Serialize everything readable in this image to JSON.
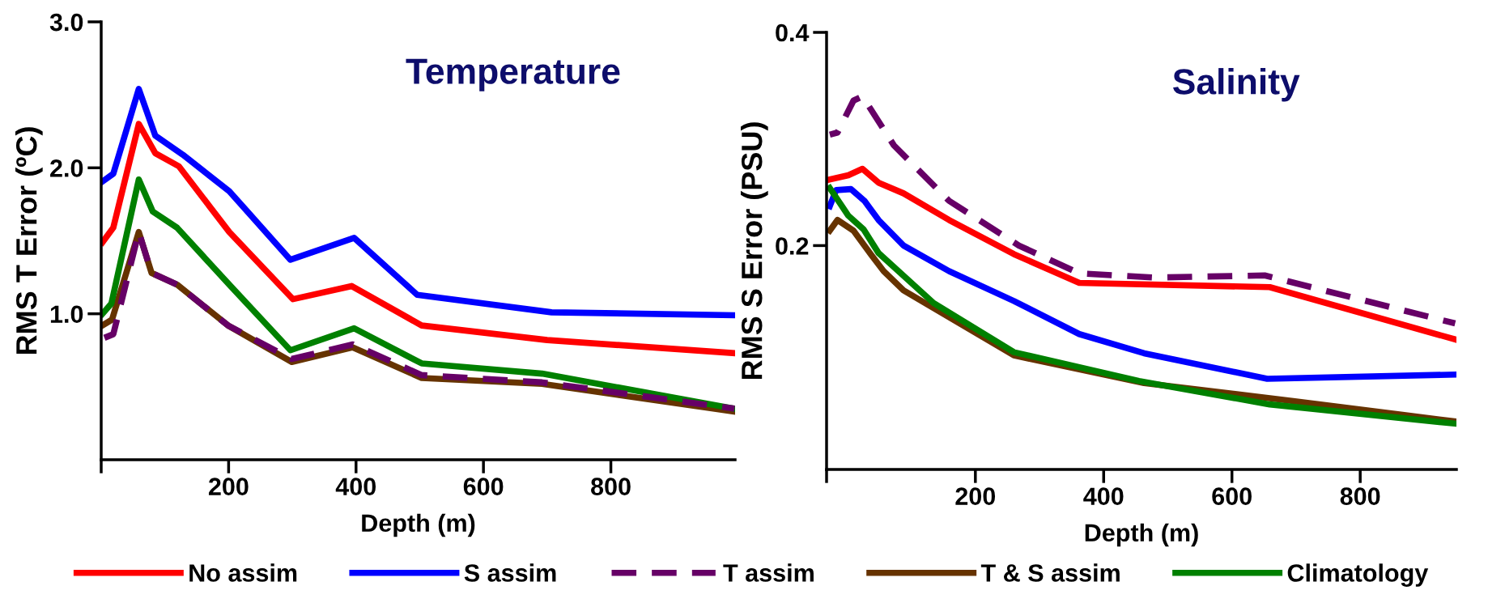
{
  "chart_data": [
    {
      "type": "line",
      "title": "Temperature",
      "xlabel": "Depth (m)",
      "ylabel": "RMS T Error (ºC)",
      "xlim": [
        0,
        995
      ],
      "xticks": [
        {
          "value": 0,
          "label": null
        },
        200,
        400,
        600,
        800
      ],
      "ylim": [
        0,
        3.0
      ],
      "yticks": [
        {
          "value": 1.0,
          "label": "1.0"
        },
        {
          "value": 2.0,
          "label": "2.0"
        },
        {
          "value": 3.0,
          "label": "3.0"
        }
      ],
      "grid": false,
      "legend": "bottom",
      "marker": "none",
      "series": [
        {
          "name": "No assim",
          "color": "#ff0000",
          "x": [
            2,
            19,
            59,
            85,
            122,
            201,
            301,
            393,
            503,
            700,
            994
          ],
          "values": [
            1.49,
            1.59,
            2.3,
            2.1,
            2.01,
            1.56,
            1.1,
            1.19,
            0.92,
            0.82,
            0.73
          ]
        },
        {
          "name": "S assim",
          "color": "#0000ff",
          "x": [
            0,
            19,
            59,
            85,
            128,
            201,
            297,
            397,
            496,
            707,
            994
          ],
          "values": [
            1.9,
            1.96,
            2.54,
            2.22,
            2.09,
            1.84,
            1.37,
            1.52,
            1.13,
            1.01,
            0.99
          ]
        },
        {
          "name": "T assim",
          "color": "#660066",
          "line_style": "dashed",
          "x": [
            2,
            19,
            59,
            79,
            119,
            199,
            299,
            395,
            503,
            692,
            994
          ],
          "values": [
            0.83,
            0.86,
            1.56,
            1.28,
            1.2,
            0.92,
            0.69,
            0.79,
            0.58,
            0.53,
            0.35
          ]
        },
        {
          "name": "T & S assim",
          "color": "#663300",
          "x": [
            2,
            17,
            59,
            79,
            119,
            199,
            299,
            395,
            503,
            692,
            994
          ],
          "values": [
            0.92,
            0.96,
            1.56,
            1.28,
            1.2,
            0.92,
            0.67,
            0.77,
            0.56,
            0.52,
            0.33
          ]
        },
        {
          "name": "Climatology",
          "color": "#008000",
          "x": [
            2,
            16,
            59,
            81,
            119,
            201,
            297,
            397,
            503,
            692,
            994
          ],
          "values": [
            1.0,
            1.07,
            1.92,
            1.7,
            1.59,
            1.2,
            0.75,
            0.9,
            0.66,
            0.59,
            0.35
          ]
        }
      ]
    },
    {
      "type": "line",
      "title": "Salinity",
      "xlabel": "Depth (m)",
      "ylabel": "RMS S Error (PSU)",
      "xlim": [
        -32,
        950
      ],
      "xticks": [
        {
          "value": -32,
          "label": null
        },
        200,
        400,
        600,
        800
      ],
      "ylim": [
        -0.01,
        0.4
      ],
      "yticks": [
        0.2,
        0.4
      ],
      "grid": false,
      "legend": "bottom",
      "marker": "none",
      "series": [
        {
          "name": "No assim",
          "color": "#ff0000",
          "x": [
            -27,
            2,
            24,
            49,
            88,
            159,
            260,
            362,
            659,
            948
          ],
          "values": [
            0.262,
            0.266,
            0.272,
            0.259,
            0.249,
            0.224,
            0.192,
            0.165,
            0.161,
            0.112
          ]
        },
        {
          "name": "S assim",
          "color": "#0000ff",
          "x": [
            -27,
            -17,
            6,
            27,
            49,
            88,
            159,
            260,
            362,
            463,
            655,
            948
          ],
          "values": [
            0.237,
            0.252,
            0.253,
            0.242,
            0.224,
            0.2,
            0.176,
            0.148,
            0.117,
            0.099,
            0.075,
            0.079
          ]
        },
        {
          "name": "T assim",
          "color": "#660066",
          "line_style": "dashed",
          "x": [
            -27,
            -15,
            10,
            24,
            73,
            159,
            268,
            362,
            479,
            651,
            948
          ],
          "values": [
            0.304,
            0.306,
            0.336,
            0.34,
            0.294,
            0.242,
            0.2,
            0.174,
            0.17,
            0.172,
            0.127
          ]
        },
        {
          "name": "T & S assim",
          "color": "#663300",
          "x": [
            -27,
            -15,
            10,
            38,
            57,
            88,
            260,
            463,
            698,
            948
          ],
          "values": [
            0.214,
            0.224,
            0.214,
            0.191,
            0.176,
            0.158,
            0.097,
            0.071,
            0.054,
            0.035
          ]
        },
        {
          "name": "Climatology",
          "color": "#008000",
          "x": [
            -27,
            2,
            26,
            49,
            135,
            260,
            455,
            659,
            948
          ],
          "values": [
            0.254,
            0.228,
            0.215,
            0.193,
            0.146,
            0.1,
            0.073,
            0.051,
            0.033
          ]
        }
      ]
    }
  ]
}
